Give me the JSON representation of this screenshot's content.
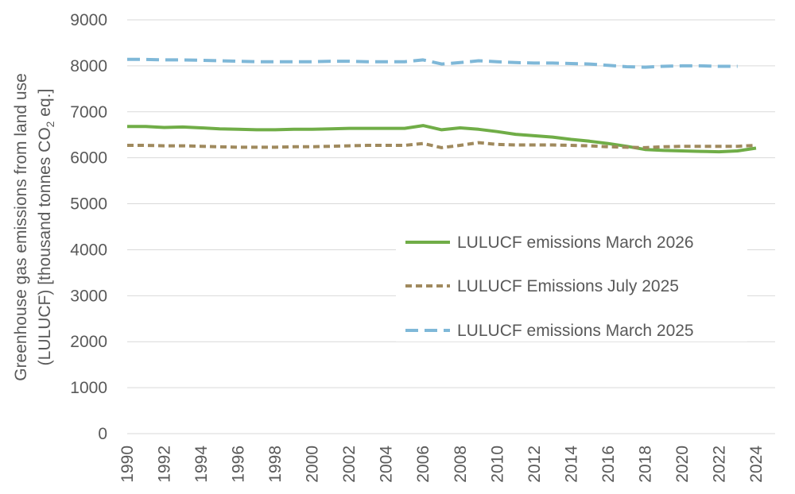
{
  "chart_data": {
    "type": "line",
    "title": "",
    "xlabel": "",
    "ylabel_line1": "Greenhouse gas emissions from land use",
    "ylabel_line2_pre": "(LULUCF) [thousand tonnes CO",
    "ylabel_line2_sub": "2",
    "ylabel_line2_post": " eq.]",
    "ylim": [
      0,
      9000
    ],
    "yticks": [
      0,
      1000,
      2000,
      3000,
      4000,
      5000,
      6000,
      7000,
      8000,
      9000
    ],
    "xlim": [
      1990,
      2024
    ],
    "xticks": [
      1990,
      1992,
      1994,
      1996,
      1998,
      2000,
      2002,
      2004,
      2006,
      2008,
      2010,
      2012,
      2014,
      2016,
      2018,
      2020,
      2022,
      2024
    ],
    "grid": true,
    "legend_position": "center-right",
    "series": [
      {
        "name": "LULUCF emissions March 2026",
        "color": "#70ad47",
        "style": "solid",
        "x": [
          1990,
          1991,
          1992,
          1993,
          1994,
          1995,
          1996,
          1997,
          1998,
          1999,
          2000,
          2001,
          2002,
          2003,
          2004,
          2005,
          2006,
          2007,
          2008,
          2009,
          2010,
          2011,
          2012,
          2013,
          2014,
          2015,
          2016,
          2017,
          2018,
          2019,
          2020,
          2021,
          2022,
          2023,
          2024
        ],
        "values": [
          6680,
          6680,
          6660,
          6670,
          6650,
          6630,
          6620,
          6610,
          6610,
          6620,
          6620,
          6630,
          6640,
          6640,
          6640,
          6640,
          6700,
          6610,
          6650,
          6620,
          6570,
          6510,
          6480,
          6450,
          6400,
          6360,
          6310,
          6250,
          6180,
          6160,
          6150,
          6140,
          6130,
          6150,
          6210
        ]
      },
      {
        "name": "LULUCF Emissions July 2025",
        "color": "#a08a5e",
        "style": "short-dash",
        "x": [
          1990,
          1991,
          1992,
          1993,
          1994,
          1995,
          1996,
          1997,
          1998,
          1999,
          2000,
          2001,
          2002,
          2003,
          2004,
          2005,
          2006,
          2007,
          2008,
          2009,
          2010,
          2011,
          2012,
          2013,
          2014,
          2015,
          2016,
          2017,
          2018,
          2019,
          2020,
          2021,
          2022,
          2023,
          2024
        ],
        "values": [
          6270,
          6270,
          6260,
          6260,
          6250,
          6240,
          6230,
          6230,
          6230,
          6240,
          6240,
          6250,
          6260,
          6270,
          6270,
          6270,
          6310,
          6220,
          6270,
          6330,
          6290,
          6280,
          6280,
          6280,
          6270,
          6260,
          6240,
          6230,
          6220,
          6240,
          6250,
          6250,
          6250,
          6250,
          6270
        ]
      },
      {
        "name": "LULUCF emissions March 2025",
        "color": "#7fb8d8",
        "style": "long-dash",
        "x": [
          1990,
          1991,
          1992,
          1993,
          1994,
          1995,
          1996,
          1997,
          1998,
          1999,
          2000,
          2001,
          2002,
          2003,
          2004,
          2005,
          2006,
          2007,
          2008,
          2009,
          2010,
          2011,
          2012,
          2013,
          2014,
          2015,
          2016,
          2017,
          2018,
          2019,
          2020,
          2021,
          2022,
          2023
        ],
        "values": [
          8140,
          8140,
          8130,
          8130,
          8120,
          8110,
          8100,
          8090,
          8090,
          8090,
          8090,
          8100,
          8100,
          8090,
          8090,
          8090,
          8130,
          8040,
          8070,
          8110,
          8090,
          8070,
          8060,
          8060,
          8050,
          8040,
          8010,
          7980,
          7970,
          7990,
          8000,
          8000,
          7990,
          7990
        ]
      }
    ]
  }
}
